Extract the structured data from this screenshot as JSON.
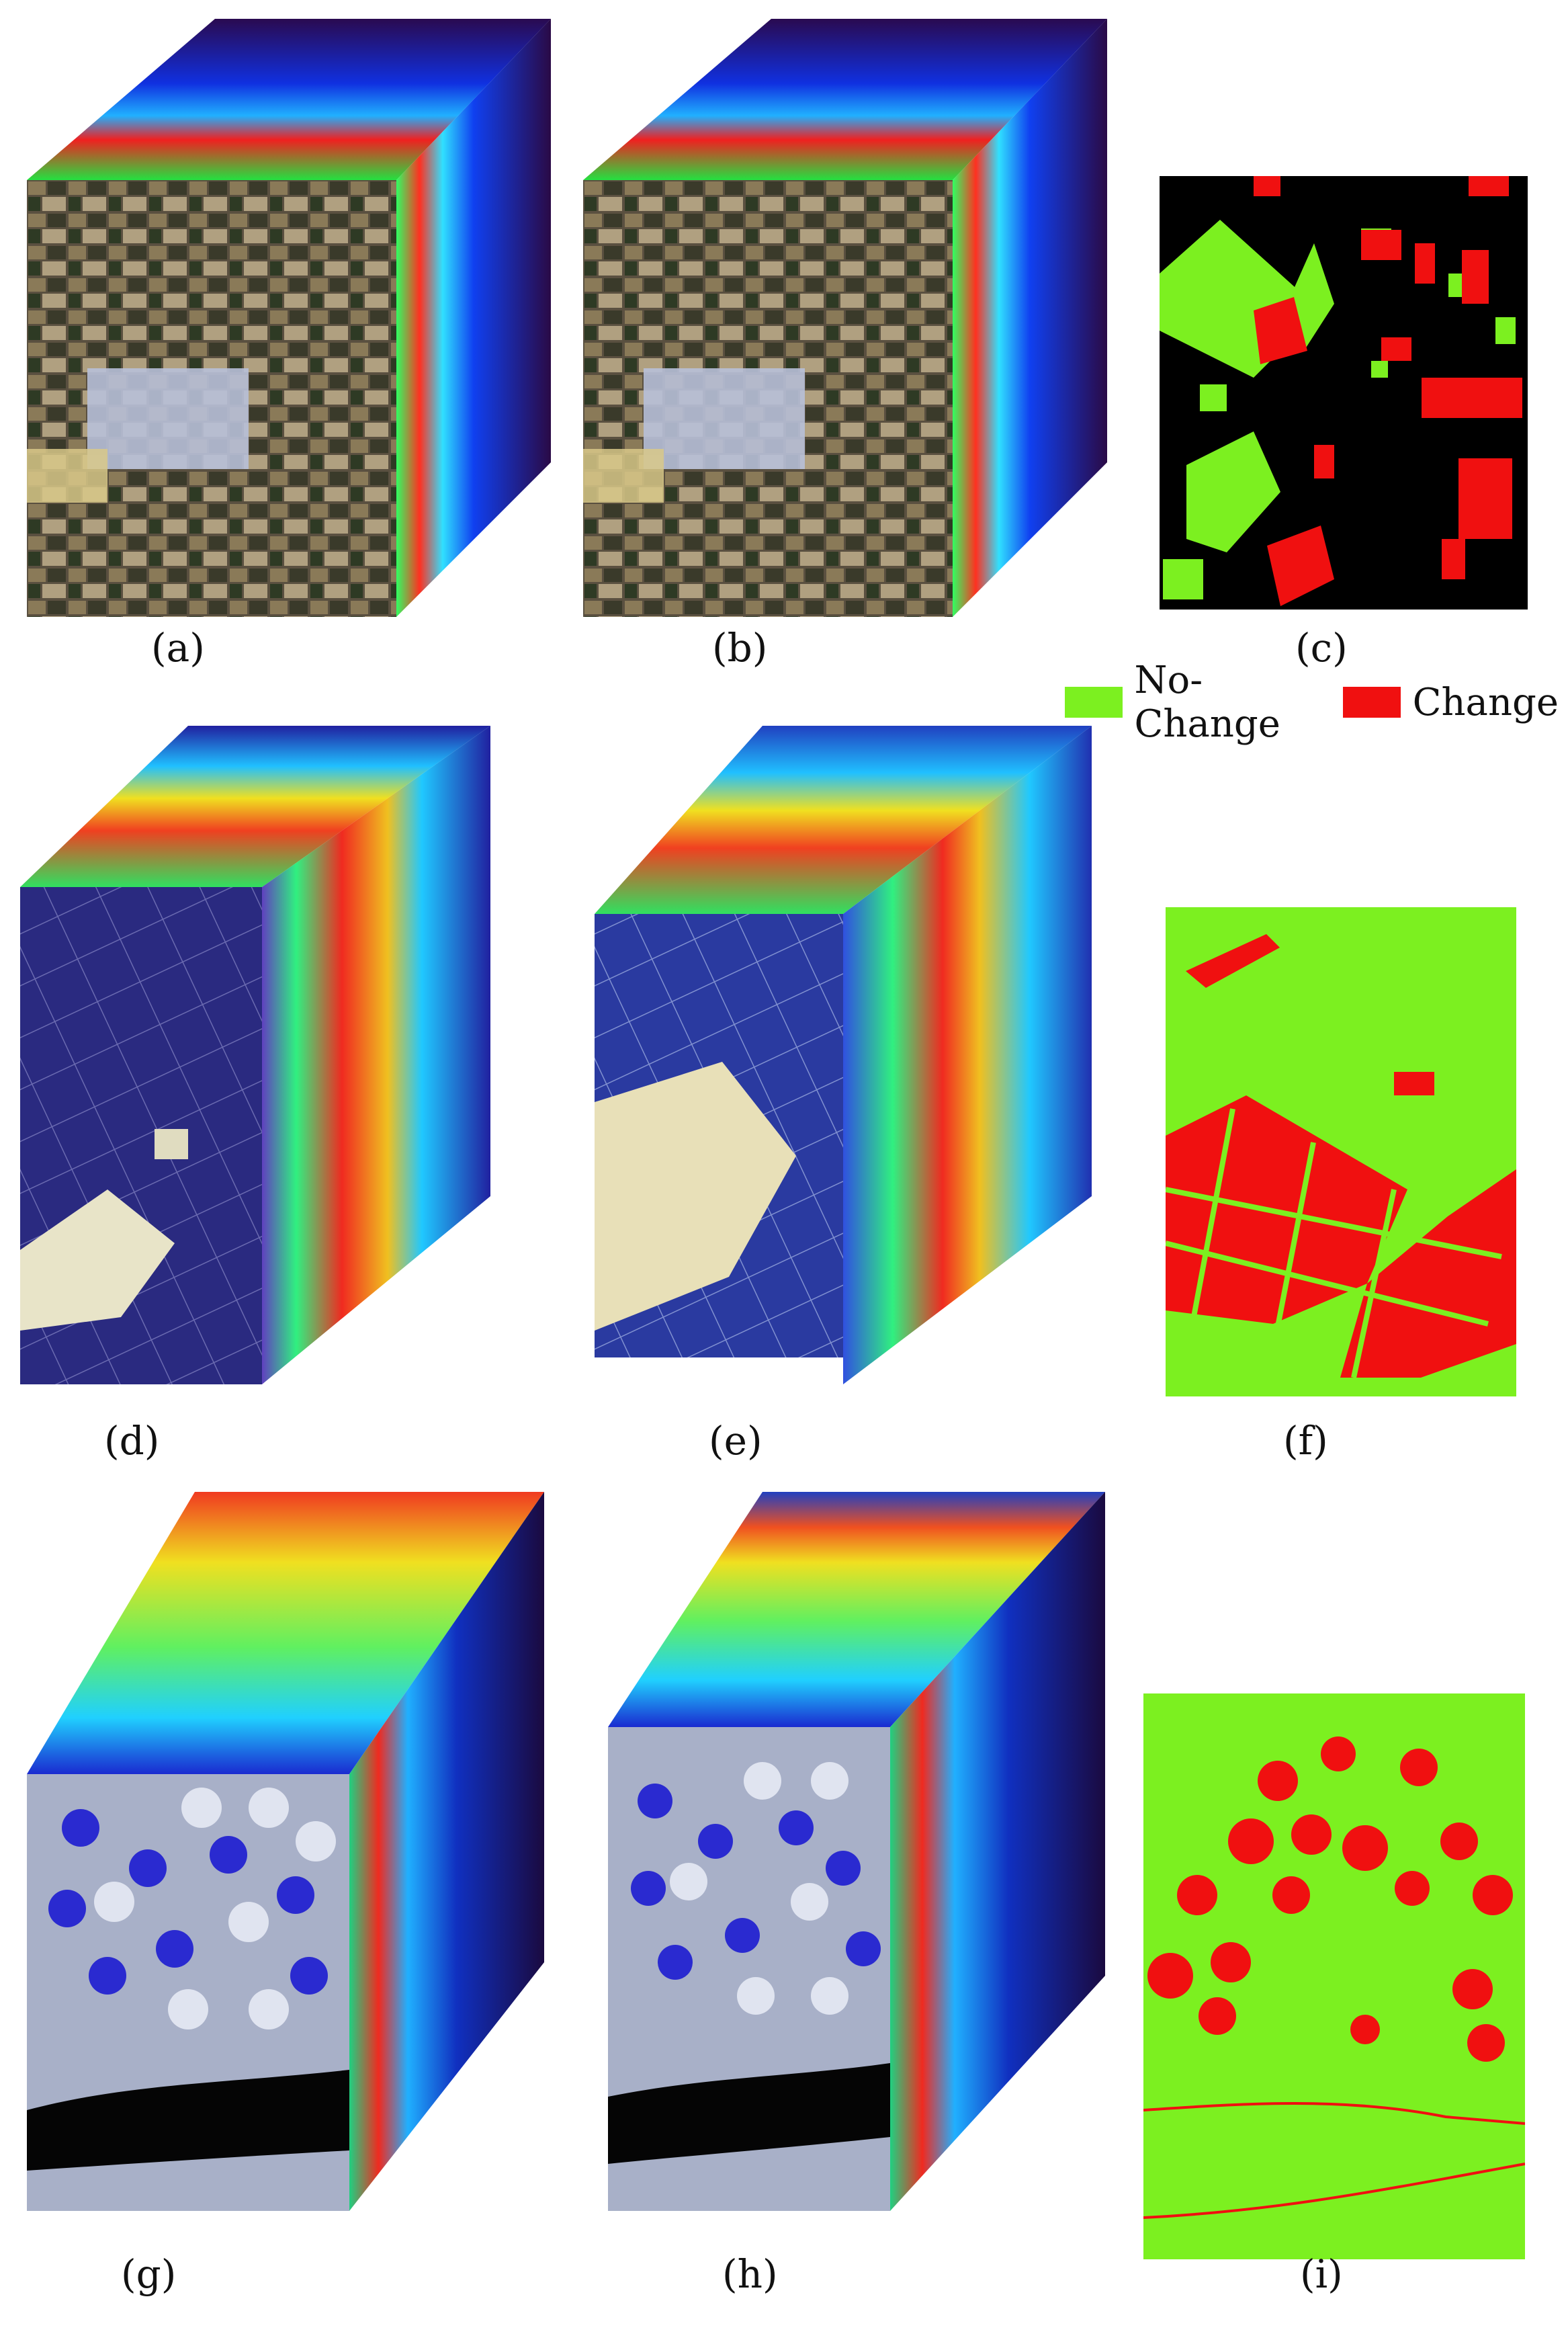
{
  "figure": {
    "panels": [
      {
        "id": "a",
        "caption": "(a)",
        "kind": "cube",
        "scene": "farmland-town"
      },
      {
        "id": "b",
        "caption": "(b)",
        "kind": "cube",
        "scene": "farmland-town"
      },
      {
        "id": "c",
        "caption": "(c)",
        "kind": "change-map",
        "background": "#000000"
      },
      {
        "id": "d",
        "caption": "(d)",
        "kind": "cube",
        "scene": "desert-fields-dark"
      },
      {
        "id": "e",
        "caption": "(e)",
        "kind": "cube",
        "scene": "desert-fields-bright"
      },
      {
        "id": "f",
        "caption": "(f)",
        "kind": "change-map",
        "background": "#7cf020"
      },
      {
        "id": "g",
        "caption": "(g)",
        "kind": "cube",
        "scene": "center-pivot-river"
      },
      {
        "id": "h",
        "caption": "(h)",
        "kind": "cube",
        "scene": "center-pivot-river"
      },
      {
        "id": "i",
        "caption": "(i)",
        "kind": "change-map",
        "background": "#7cf020"
      }
    ],
    "legend": [
      {
        "label": "No-Change",
        "color": "#7cf020"
      },
      {
        "label": "Change",
        "color": "#f01010"
      }
    ]
  }
}
